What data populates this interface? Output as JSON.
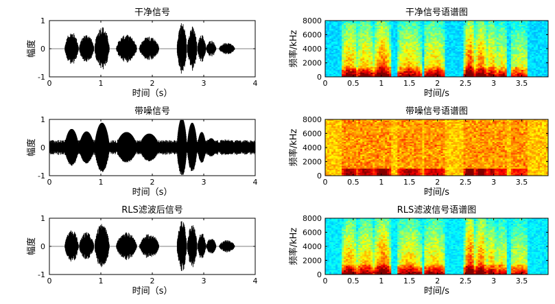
{
  "chart_data": [
    {
      "type": "line",
      "title": "干净信号",
      "xlabel": "时间（s）",
      "ylabel": "幅度",
      "xlim": [
        0,
        4
      ],
      "ylim": [
        -1,
        1
      ],
      "xticks": [
        "0",
        "1",
        "2",
        "3",
        "4"
      ],
      "yticks": [
        "1",
        "0",
        "-1"
      ],
      "series": [
        {
          "kind": "speech-envelope",
          "line_color": "#000000",
          "segments": [
            {
              "start": 0.3,
              "end": 0.58,
              "amp": 0.6
            },
            {
              "start": 0.58,
              "end": 0.88,
              "amp": 0.52
            },
            {
              "start": 0.88,
              "end": 1.18,
              "amp": 0.8
            },
            {
              "start": 1.3,
              "end": 1.72,
              "amp": 0.5
            },
            {
              "start": 1.75,
              "end": 2.15,
              "amp": 0.45
            },
            {
              "start": 2.48,
              "end": 2.68,
              "amp": 0.95
            },
            {
              "start": 2.68,
              "end": 2.88,
              "amp": 0.8
            },
            {
              "start": 2.88,
              "end": 3.05,
              "amp": 0.5
            },
            {
              "start": 3.05,
              "end": 3.25,
              "amp": 0.3
            },
            {
              "start": 3.3,
              "end": 3.62,
              "amp": 0.22
            }
          ]
        }
      ]
    },
    {
      "type": "heatmap",
      "title": "干净信号语谱图",
      "xlabel": "时间/s",
      "ylabel": "频率/kHz",
      "xlim": [
        0,
        3.97
      ],
      "ylim": [
        0,
        8000
      ],
      "xticks": [
        "0",
        "0.5",
        "1",
        "1.5",
        "2",
        "2.5",
        "3",
        "3.5"
      ],
      "yticks": [
        "8000",
        "6000",
        "4000",
        "2000",
        "0"
      ],
      "colormap": "jet",
      "colors": {
        "low": "#2aa8e0",
        "mid": "#f0e020",
        "high": "#cc0000"
      }
    },
    {
      "type": "line",
      "title": "带噪信号",
      "xlabel": "时间（s）",
      "ylabel": "幅度",
      "xlim": [
        0,
        4
      ],
      "ylim": [
        -1,
        1
      ],
      "xticks": [
        "0",
        "1",
        "2",
        "3",
        "4"
      ],
      "yticks": [
        "1",
        "0",
        "-1"
      ],
      "series": [
        {
          "kind": "speech-envelope-noisy",
          "line_color": "#000000",
          "noise_floor": 0.22
        }
      ]
    },
    {
      "type": "heatmap",
      "title": "带噪信号语谱图",
      "xlabel": "时间/s",
      "ylabel": "频率/kHz",
      "xlim": [
        0,
        3.97
      ],
      "ylim": [
        0,
        8000
      ],
      "xticks": [
        "0",
        "0.5",
        "1",
        "1.5",
        "2",
        "2.5",
        "3",
        "3.5"
      ],
      "yticks": [
        "8000",
        "6000",
        "4000",
        "2000",
        "0"
      ],
      "colormap": "jet"
    },
    {
      "type": "line",
      "title": "RLS滤波后信号",
      "xlabel": "时间（s）",
      "ylabel": "幅度",
      "xlim": [
        0,
        4
      ],
      "ylim": [
        -1,
        1
      ],
      "xticks": [
        "0",
        "1",
        "2",
        "3",
        "4"
      ],
      "yticks": [
        "1",
        "0",
        "-1"
      ],
      "series": [
        {
          "kind": "speech-envelope",
          "line_color": "#000000"
        }
      ]
    },
    {
      "type": "heatmap",
      "title": "RLS滤波信号语谱图",
      "xlabel": "时间/s",
      "ylabel": "频率/kHz",
      "xlim": [
        0,
        3.97
      ],
      "ylim": [
        0,
        8000
      ],
      "xticks": [
        "0",
        "0.5",
        "1",
        "1.5",
        "2",
        "2.5",
        "3",
        "3.5"
      ],
      "yticks": [
        "8000",
        "6000",
        "4000",
        "2000",
        "0"
      ],
      "colormap": "jet"
    }
  ]
}
